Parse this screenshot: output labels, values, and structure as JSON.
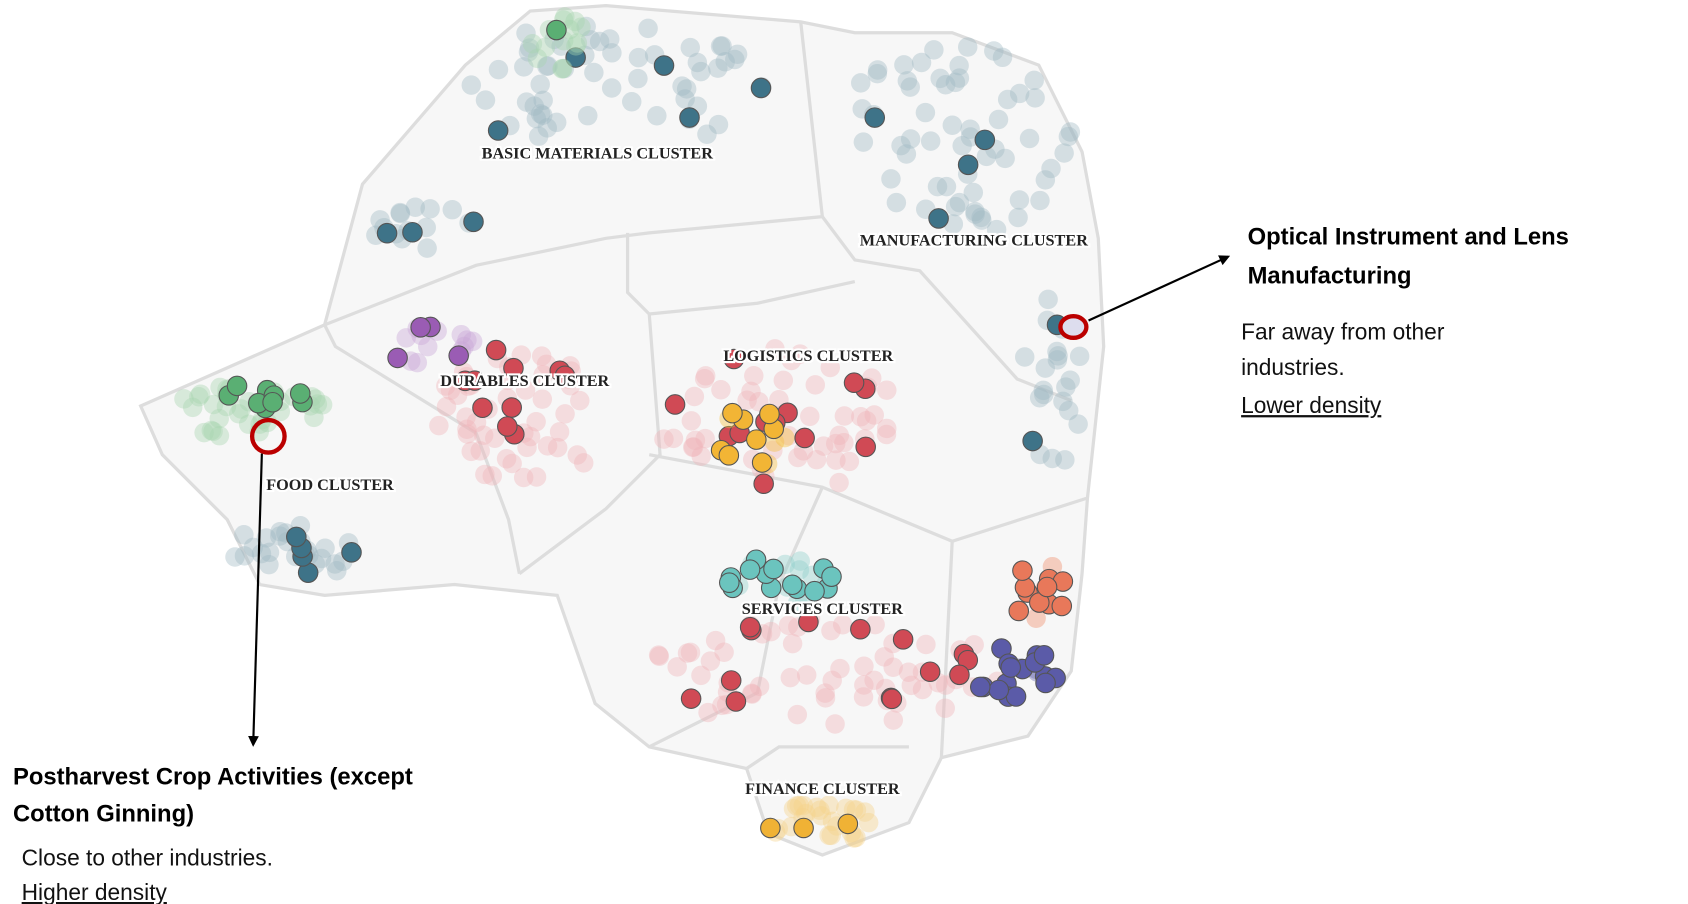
{
  "clusters": [
    {
      "label": "BASIC MATERIALS CLUSTER"
    },
    {
      "label": "MANUFACTURING CLUSTER"
    },
    {
      "label": "LOGISTICS CLUSTER"
    },
    {
      "label": "DURABLES CLUSTER"
    },
    {
      "label": "FOOD CLUSTER"
    },
    {
      "label": "SERVICES CLUSTER"
    },
    {
      "label": "FINANCE CLUSTER"
    }
  ],
  "annotations": [
    {
      "title": [
        "Optical Instrument and Lens",
        "Manufacturing"
      ],
      "text": [
        "Far away from other",
        "industries."
      ],
      "emphasis": "Lower density"
    },
    {
      "title": [
        "Postharvest Crop Activities (except",
        "Cotton Ginning)"
      ],
      "text": [
        "Close to other industries."
      ],
      "emphasis": "Higher density"
    }
  ]
}
